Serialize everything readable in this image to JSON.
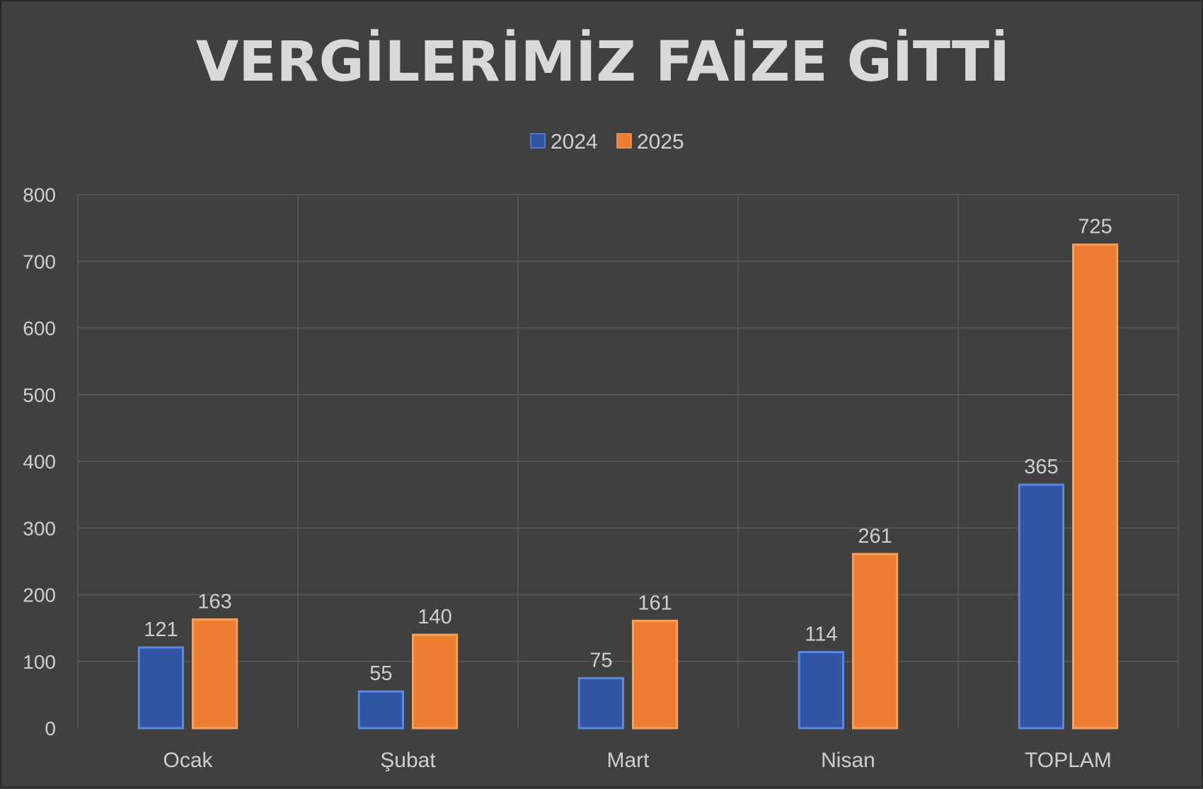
{
  "chart_data": {
    "type": "bar",
    "title": "VERGİLERİMİZ FAİZE GİTTİ",
    "categories": [
      "Ocak",
      "Şubat",
      "Mart",
      "Nisan",
      "TOPLAM"
    ],
    "series": [
      {
        "name": "2024",
        "values": [
          121,
          55,
          75,
          114,
          365
        ],
        "color": "#2f55a4",
        "edge": "#5b87e0"
      },
      {
        "name": "2025",
        "values": [
          163,
          140,
          161,
          261,
          725
        ],
        "color": "#ed7d31",
        "edge": "#f5a15c"
      }
    ],
    "ylim": [
      0,
      800
    ],
    "yticks": [
      0,
      100,
      200,
      300,
      400,
      500,
      600,
      700,
      800
    ],
    "grid": true,
    "legend_position": "top-center",
    "xlabel": "",
    "ylabel": ""
  }
}
